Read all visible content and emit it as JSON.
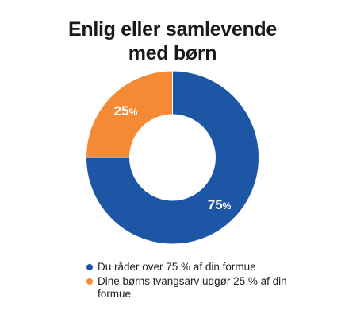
{
  "title_lines": [
    "Enlig eller samlevende",
    "med børn"
  ],
  "colors": {
    "series_0": "#1e56a6",
    "series_1": "#f58a35",
    "label": "#ffffff"
  },
  "chart_data": {
    "type": "pie",
    "title": "Enlig eller samlevende med børn",
    "donut": true,
    "categories": [
      "Du råder over 75 % af din formue",
      "Dine børns tvangsarv udgør 25 % af din formue"
    ],
    "values": [
      75,
      25
    ],
    "data_labels": [
      "75",
      "25"
    ],
    "data_label_unit": "%",
    "legend_position": "bottom"
  }
}
